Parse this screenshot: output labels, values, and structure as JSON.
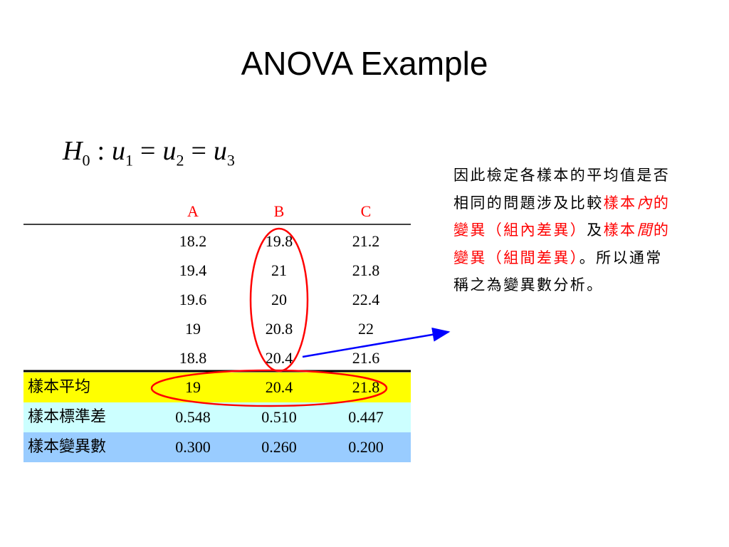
{
  "title": "ANOVA Example",
  "hypothesis": [
    {
      "base": "H",
      "sub": "0"
    },
    {
      "base": ":"
    },
    {
      "base": "u",
      "sub": "1"
    },
    {
      "base": "="
    },
    {
      "base": "u",
      "sub": "2"
    },
    {
      "base": "="
    },
    {
      "base": "u",
      "sub": "3"
    }
  ],
  "table": {
    "columns": [
      "A",
      "B",
      "C"
    ],
    "rows": [
      [
        "18.2",
        "19.8",
        "21.2"
      ],
      [
        "19.4",
        "21",
        "21.8"
      ],
      [
        "19.6",
        "20",
        "22.4"
      ],
      [
        "19",
        "20.8",
        "22"
      ],
      [
        "18.8",
        "20.4",
        "21.6"
      ]
    ],
    "summary": [
      {
        "label": "樣本平均",
        "color": "#ffff00",
        "values": [
          "19",
          "20.4",
          "21.8"
        ]
      },
      {
        "label": "樣本標準差",
        "color": "#ccffff",
        "values": [
          "0.548",
          "0.510",
          "0.447"
        ]
      },
      {
        "label": "樣本變異數",
        "color": "#99ccff",
        "values": [
          "0.300",
          "0.260",
          "0.200"
        ]
      }
    ]
  },
  "note": [
    {
      "text": "因此檢定各樣本的平均值是否相同的問題涉及比較",
      "style": "plain"
    },
    {
      "text": "樣本",
      "style": "red"
    },
    {
      "text": "內",
      "style": "red-italic"
    },
    {
      "text": "的變異（組內差異）",
      "style": "red"
    },
    {
      "text": "及",
      "style": "plain"
    },
    {
      "text": "樣本",
      "style": "red"
    },
    {
      "text": "間",
      "style": "red-italic"
    },
    {
      "text": "的變異（組間差異）",
      "style": "red"
    },
    {
      "text": "。所以通常稱之為變異數分析。",
      "style": "plain"
    }
  ]
}
